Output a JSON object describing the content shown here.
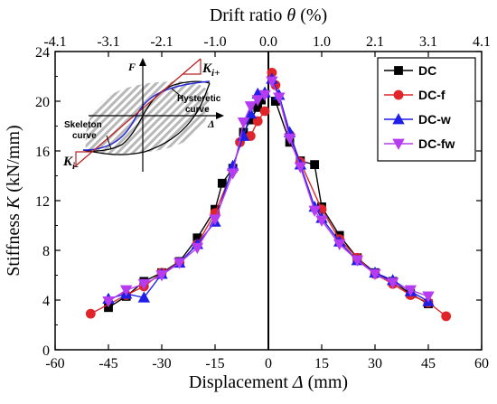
{
  "chart_data": {
    "type": "scatter",
    "title": "",
    "xlabel_prefix": "Displacement ",
    "xlabel_symbol": "Δ",
    "xlabel_suffix": " (mm)",
    "ylabel_prefix": "Stiffness ",
    "ylabel_symbol": "K",
    "ylabel_suffix": " (kN/mm)",
    "x2label_prefix": "Drift ratio ",
    "x2label_symbol": "θ",
    "x2label_suffix": " (%)",
    "xlim": [
      -60,
      60
    ],
    "ylim": [
      0,
      24
    ],
    "x_ticks": [
      "-60",
      "-45",
      "-30",
      "-15",
      "0",
      "15",
      "30",
      "45",
      "60"
    ],
    "y_ticks": [
      "0",
      "4",
      "8",
      "12",
      "16",
      "20",
      "24"
    ],
    "x2_ticks": [
      {
        "label": "-4.1",
        "x": -60
      },
      {
        "label": "-3.1",
        "x": -45
      },
      {
        "label": "-2.1",
        "x": -30
      },
      {
        "label": "-1.0",
        "x": -15
      },
      {
        "label": "0.0",
        "x": 0
      },
      {
        "label": "1.0",
        "x": 15
      },
      {
        "label": "2.1",
        "x": 30
      },
      {
        "label": "3.1",
        "x": 45
      },
      {
        "label": "4.1",
        "x": 60
      }
    ],
    "legend_position": "top-right",
    "series": [
      {
        "name": "DC",
        "color": "#000000",
        "marker": "square",
        "x": [
          -45,
          -40,
          -35,
          -30,
          -25,
          -20,
          -15,
          -13,
          -10,
          -7,
          -5,
          -3,
          -2,
          2,
          6,
          9,
          13,
          15,
          20,
          25,
          30,
          35,
          40,
          45
        ],
        "y": [
          3.4,
          4.3,
          5.5,
          6.2,
          7.1,
          9.0,
          11.3,
          13.4,
          14.6,
          17.5,
          18.5,
          19.5,
          20.1,
          20.0,
          16.7,
          15.2,
          14.9,
          11.5,
          9.2,
          7.4,
          6.2,
          5.5,
          4.5,
          3.7
        ]
      },
      {
        "name": "DC-f",
        "color": "#e0252a",
        "marker": "circle",
        "x": [
          -50,
          -40,
          -35,
          -30,
          -25,
          -20,
          -15,
          -10,
          -8,
          -5,
          -3,
          -1,
          1,
          2,
          6,
          9,
          15,
          20,
          25,
          30,
          35,
          40,
          45,
          50
        ],
        "y": [
          2.9,
          4.4,
          5.1,
          6.2,
          7.0,
          8.5,
          11.0,
          14.5,
          16.7,
          17.2,
          18.4,
          19.2,
          22.3,
          21.3,
          17.3,
          15.1,
          11.3,
          8.9,
          7.4,
          6.1,
          5.3,
          4.4,
          3.8,
          2.7
        ]
      },
      {
        "name": "DC-w",
        "color": "#1f1fe8",
        "marker": "triangle-up",
        "x": [
          -45,
          -40,
          -35,
          -30,
          -25,
          -20,
          -15,
          -10,
          -7,
          -5,
          -3,
          -1,
          1,
          3,
          6,
          9,
          13,
          15,
          20,
          25,
          30,
          35,
          40,
          45
        ],
        "y": [
          4.1,
          4.5,
          4.2,
          6.1,
          7.0,
          8.5,
          10.3,
          14.8,
          17.2,
          19.0,
          20.6,
          20.7,
          21.8,
          20.5,
          17.5,
          14.9,
          11.5,
          10.6,
          8.7,
          7.2,
          6.2,
          5.6,
          4.7,
          3.9
        ]
      },
      {
        "name": "DC-fw",
        "color": "#b53cf0",
        "marker": "triangle-down",
        "x": [
          -45,
          -40,
          -35,
          -30,
          -25,
          -20,
          -15,
          -10,
          -7,
          -5,
          -3,
          -1,
          1,
          3,
          6,
          9,
          13,
          15,
          20,
          25,
          30,
          35,
          40,
          45
        ],
        "y": [
          3.9,
          4.8,
          5.3,
          6.0,
          7.0,
          8.2,
          10.5,
          14.2,
          18.3,
          19.6,
          20.1,
          20.5,
          21.6,
          20.3,
          17.0,
          14.7,
          11.2,
          10.4,
          8.5,
          7.2,
          6.1,
          5.4,
          4.8,
          4.3
        ]
      }
    ],
    "inset": {
      "f_label": "F",
      "delta_label": "Δ",
      "k_plus_main": "K",
      "k_plus_sub": "i+",
      "k_minus_main": "K",
      "k_minus_sub": "i-",
      "hysteretic_label_1": "Hysteretic",
      "hysteretic_label_2": "curve",
      "skeleton_label_1": "Skeleton",
      "skeleton_label_2": "curve"
    }
  }
}
